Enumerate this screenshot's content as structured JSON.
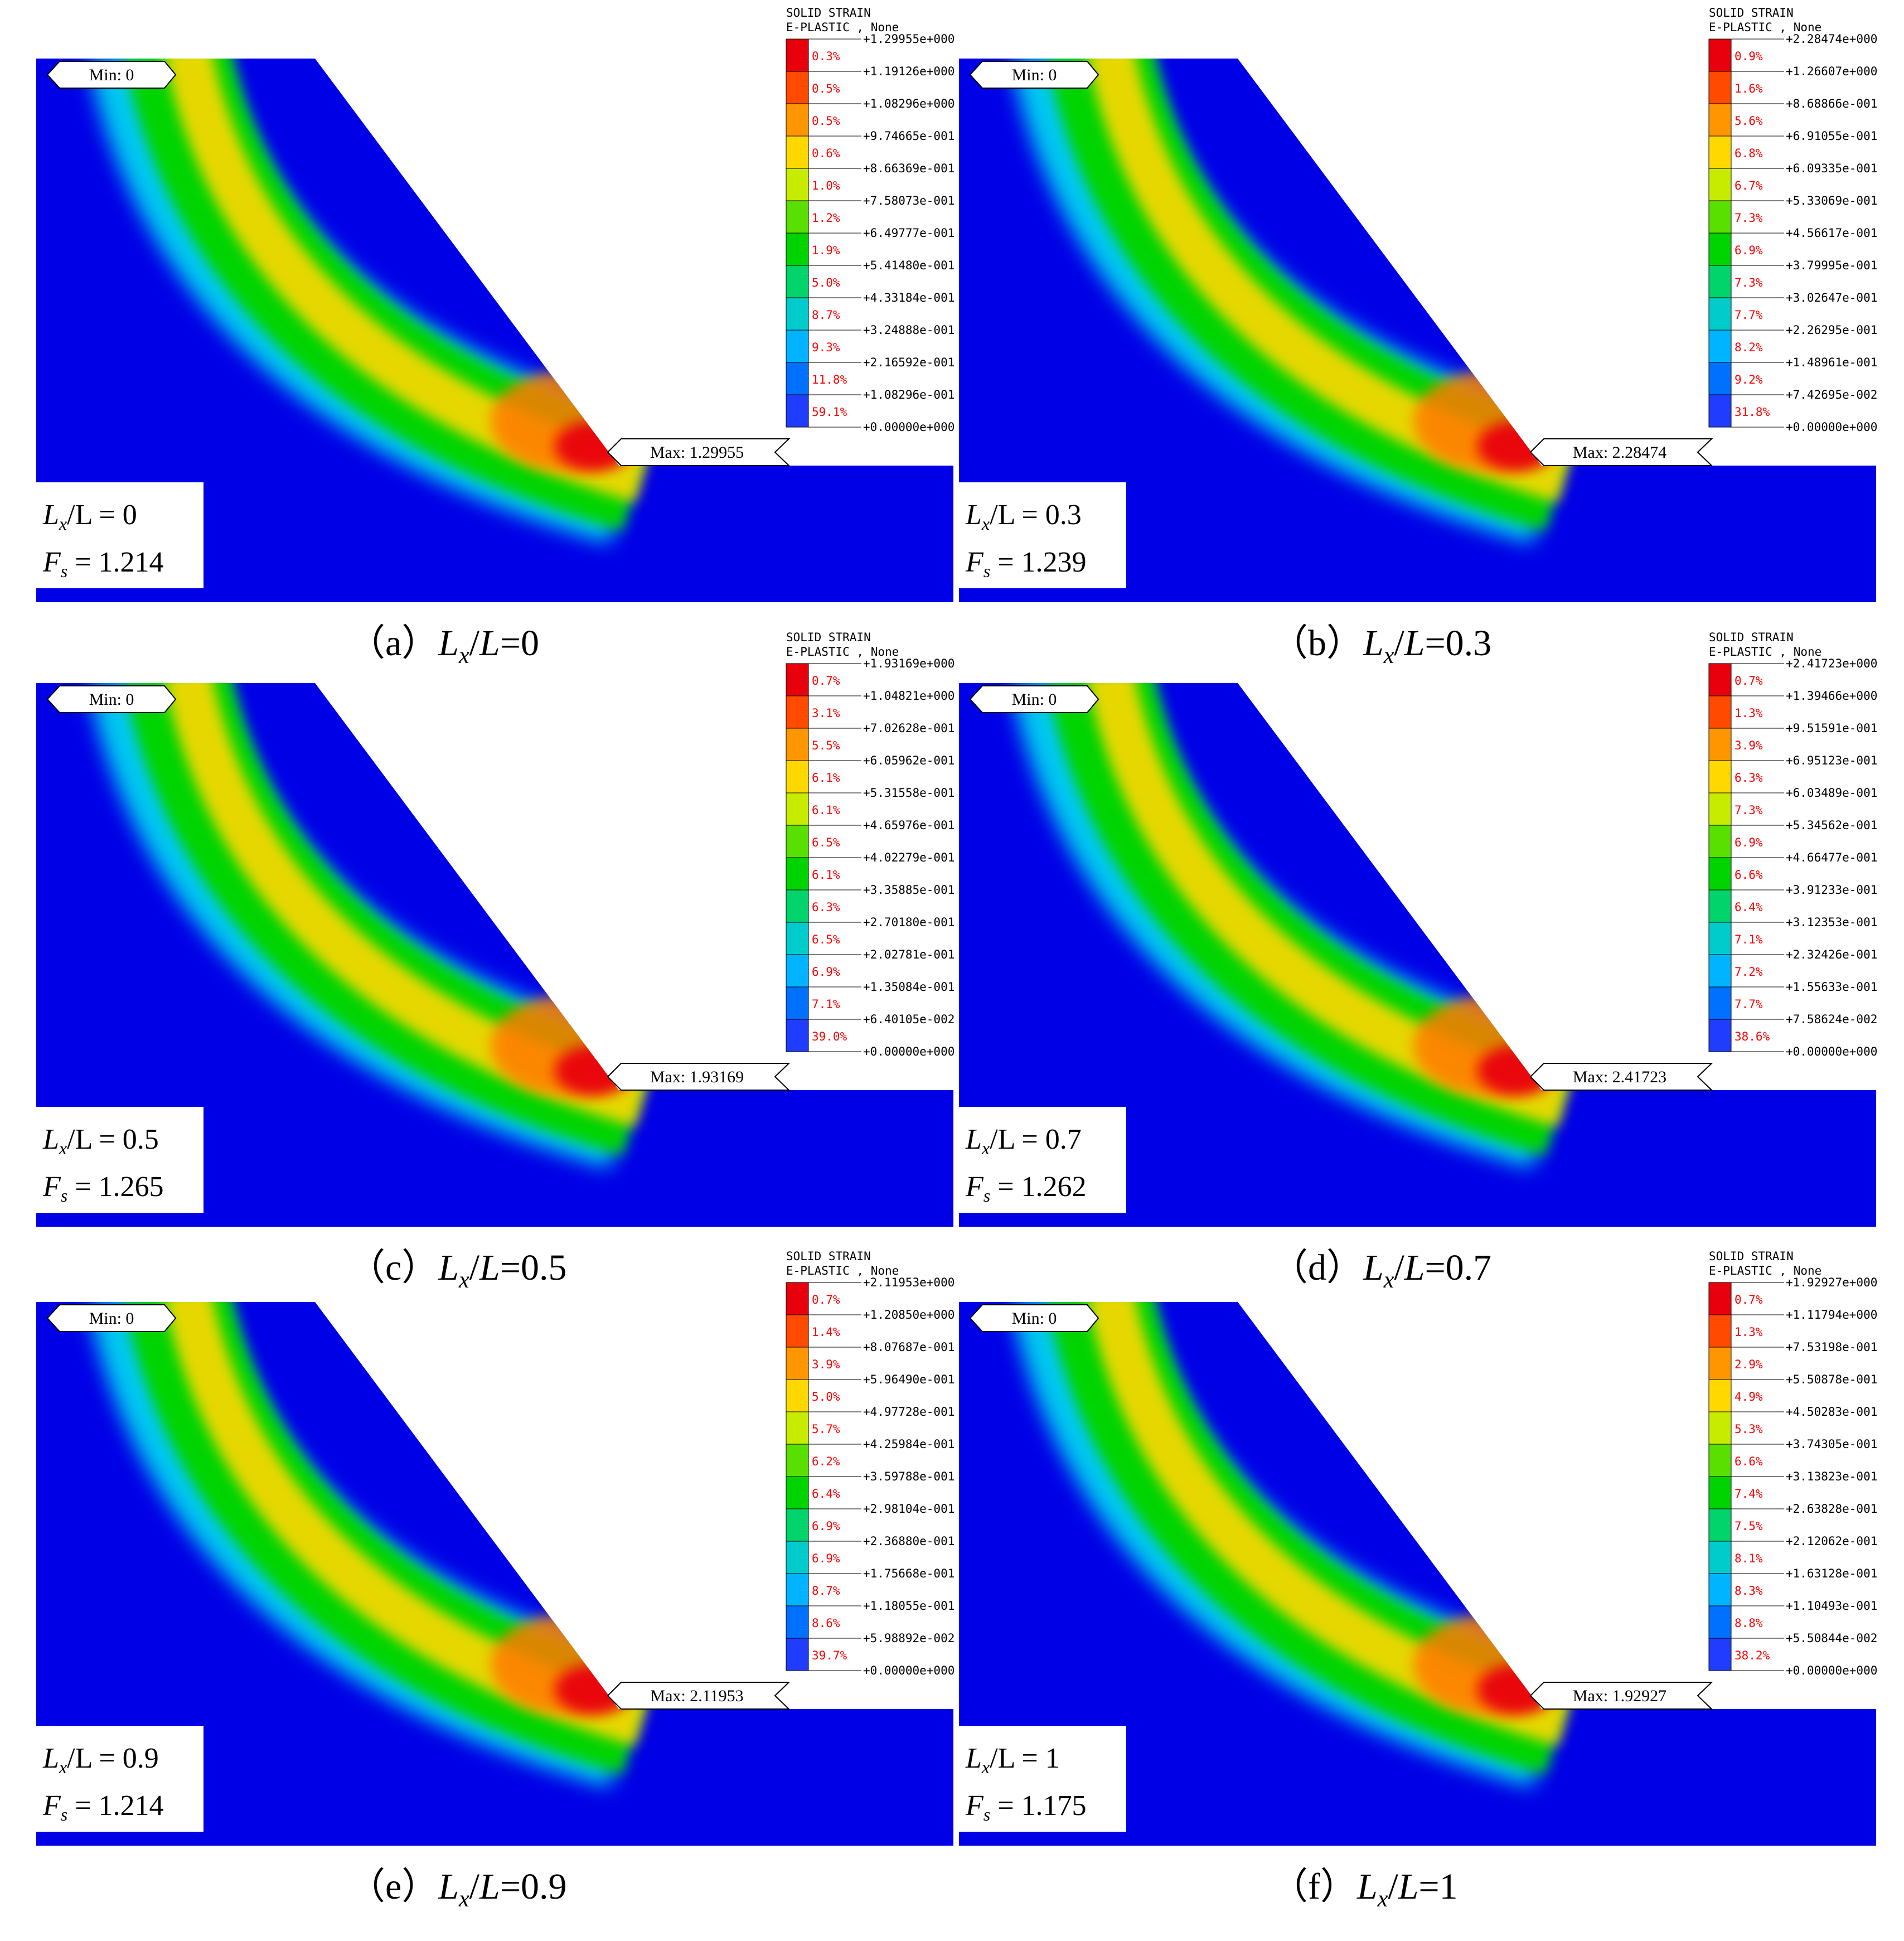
{
  "legend_colors": [
    "#e8000c",
    "#ff4a00",
    "#ff9600",
    "#ffd800",
    "#c8ec00",
    "#5ae000",
    "#00d400",
    "#00d46a",
    "#00cccc",
    "#00b4ff",
    "#0070ff",
    "#1f3cff",
    "#0000e6"
  ],
  "colors": {
    "soil": "#0000e6",
    "strain_band": "#00d400",
    "halo": "#00c8f0",
    "core": "#ffd800",
    "peak": "#e8000c",
    "label_text": "#ff0000",
    "background": "#ffffff"
  },
  "panels": [
    {
      "id": "a",
      "caption_prefix": "（a）",
      "ratio": "0",
      "legend_title_1": "SOLID STRAIN",
      "legend_title_2": "E-PLASTIC , None",
      "legend_values": [
        "+1.29955e+000",
        "+1.19126e+000",
        "+1.08296e+000",
        "+9.74665e-001",
        "+8.66369e-001",
        "+7.58073e-001",
        "+6.49777e-001",
        "+5.41480e-001",
        "+4.33184e-001",
        "+3.24888e-001",
        "+2.16592e-001",
        "+1.08296e-001",
        "+0.00000e+000"
      ],
      "legend_percents": [
        "0.3%",
        "0.5%",
        "0.5%",
        "0.6%",
        "1.0%",
        "1.2%",
        "1.9%",
        "5.0%",
        "8.7%",
        "9.3%",
        "11.8%",
        "59.1%"
      ],
      "min_label": "Min: 0",
      "max_label": "Max: 1.29955",
      "lx_label": "L",
      "lx_sub": "x",
      "lx_rest": "/L = 0",
      "fs_label": "F",
      "fs_sub": "s",
      "fs_rest": " = 1.214",
      "caption_italic_L": "L",
      "caption_sub": "x",
      "caption_rest": "/",
      "caption_L2": "L",
      "caption_value": "=0"
    },
    {
      "id": "b",
      "caption_prefix": "（b）",
      "ratio": "0.3",
      "legend_title_1": "SOLID STRAIN",
      "legend_title_2": "E-PLASTIC , None",
      "legend_values": [
        "+2.28474e+000",
        "+1.26607e+000",
        "+8.68866e-001",
        "+6.91055e-001",
        "+6.09335e-001",
        "+5.33069e-001",
        "+4.56617e-001",
        "+3.79995e-001",
        "+3.02647e-001",
        "+2.26295e-001",
        "+1.48961e-001",
        "+7.42695e-002",
        "+0.00000e+000"
      ],
      "legend_percents": [
        "0.9%",
        "1.6%",
        "5.6%",
        "6.8%",
        "6.7%",
        "7.3%",
        "6.9%",
        "7.3%",
        "7.7%",
        "8.2%",
        "9.2%",
        "31.8%"
      ],
      "min_label": "Min: 0",
      "max_label": "Max: 2.28474",
      "lx_label": "L",
      "lx_sub": "x",
      "lx_rest": "/L = 0.3",
      "fs_label": "F",
      "fs_sub": "s",
      "fs_rest": " = 1.239",
      "caption_italic_L": "L",
      "caption_sub": "x",
      "caption_rest": "/",
      "caption_L2": "L",
      "caption_value": "=0.3"
    },
    {
      "id": "c",
      "caption_prefix": "（c）",
      "ratio": "0.5",
      "legend_title_1": "SOLID STRAIN",
      "legend_title_2": "E-PLASTIC , None",
      "legend_values": [
        "+1.93169e+000",
        "+1.04821e+000",
        "+7.02628e-001",
        "+6.05962e-001",
        "+5.31558e-001",
        "+4.65976e-001",
        "+4.02279e-001",
        "+3.35885e-001",
        "+2.70180e-001",
        "+2.02781e-001",
        "+1.35084e-001",
        "+6.40105e-002",
        "+0.00000e+000"
      ],
      "legend_percents": [
        "0.7%",
        "3.1%",
        "5.5%",
        "6.1%",
        "6.1%",
        "6.5%",
        "6.1%",
        "6.3%",
        "6.5%",
        "6.9%",
        "7.1%",
        "39.0%"
      ],
      "min_label": "Min: 0",
      "max_label": "Max: 1.93169",
      "lx_label": "L",
      "lx_sub": "x",
      "lx_rest": "/L = 0.5",
      "fs_label": "F",
      "fs_sub": "s",
      "fs_rest": " = 1.265",
      "caption_italic_L": "L",
      "caption_sub": "x",
      "caption_rest": "/",
      "caption_L2": "L",
      "caption_value": "=0.5"
    },
    {
      "id": "d",
      "caption_prefix": "（d）",
      "ratio": "0.7",
      "legend_title_1": "SOLID STRAIN",
      "legend_title_2": "E-PLASTIC , None",
      "legend_values": [
        "+2.41723e+000",
        "+1.39466e+000",
        "+9.51591e-001",
        "+6.95123e-001",
        "+6.03489e-001",
        "+5.34562e-001",
        "+4.66477e-001",
        "+3.91233e-001",
        "+3.12353e-001",
        "+2.32426e-001",
        "+1.55633e-001",
        "+7.58624e-002",
        "+0.00000e+000"
      ],
      "legend_percents": [
        "0.7%",
        "1.3%",
        "3.9%",
        "6.3%",
        "7.3%",
        "6.9%",
        "6.6%",
        "6.4%",
        "7.1%",
        "7.2%",
        "7.7%",
        "38.6%"
      ],
      "min_label": "Min: 0",
      "max_label": "Max: 2.41723",
      "lx_label": "L",
      "lx_sub": "x",
      "lx_rest": "/L = 0.7",
      "fs_label": "F",
      "fs_sub": "s",
      "fs_rest": " = 1.262",
      "caption_italic_L": "L",
      "caption_sub": "x",
      "caption_rest": "/",
      "caption_L2": "L",
      "caption_value": "=0.7"
    },
    {
      "id": "e",
      "caption_prefix": "（e）",
      "ratio": "0.9",
      "legend_title_1": "SOLID STRAIN",
      "legend_title_2": "E-PLASTIC , None",
      "legend_values": [
        "+2.11953e+000",
        "+1.20850e+000",
        "+8.07687e-001",
        "+5.96490e-001",
        "+4.97728e-001",
        "+4.25984e-001",
        "+3.59788e-001",
        "+2.98104e-001",
        "+2.36880e-001",
        "+1.75668e-001",
        "+1.18055e-001",
        "+5.98892e-002",
        "+0.00000e+000"
      ],
      "legend_percents": [
        "0.7%",
        "1.4%",
        "3.9%",
        "5.0%",
        "5.7%",
        "6.2%",
        "6.4%",
        "6.9%",
        "6.9%",
        "8.7%",
        "8.6%",
        "39.7%"
      ],
      "min_label": "Min: 0",
      "max_label": "Max: 2.11953",
      "lx_label": "L",
      "lx_sub": "x",
      "lx_rest": "/L = 0.9",
      "fs_label": "F",
      "fs_sub": "s",
      "fs_rest": " = 1.214",
      "caption_italic_L": "L",
      "caption_sub": "x",
      "caption_rest": "/",
      "caption_L2": "L",
      "caption_value": "=0.9"
    },
    {
      "id": "f",
      "caption_prefix": "（f）",
      "ratio": "1",
      "legend_title_1": "SOLID STRAIN",
      "legend_title_2": "E-PLASTIC , None",
      "legend_values": [
        "+1.92927e+000",
        "+1.11794e+000",
        "+7.53198e-001",
        "+5.50878e-001",
        "+4.50283e-001",
        "+3.74305e-001",
        "+3.13823e-001",
        "+2.63828e-001",
        "+2.12062e-001",
        "+1.63128e-001",
        "+1.10493e-001",
        "+5.50844e-002",
        "+0.00000e+000"
      ],
      "legend_percents": [
        "0.7%",
        "1.3%",
        "2.9%",
        "4.9%",
        "5.3%",
        "6.6%",
        "7.4%",
        "7.5%",
        "8.1%",
        "8.3%",
        "8.8%",
        "38.2%"
      ],
      "min_label": "Min: 0",
      "max_label": "Max: 1.92927",
      "lx_label": "L",
      "lx_sub": "x",
      "lx_rest": "/L = 1",
      "fs_label": "F",
      "fs_sub": "s",
      "fs_rest": " = 1.175",
      "caption_italic_L": "L",
      "caption_sub": "x",
      "caption_rest": "/",
      "caption_L2": "L",
      "caption_value": "=1"
    }
  ]
}
